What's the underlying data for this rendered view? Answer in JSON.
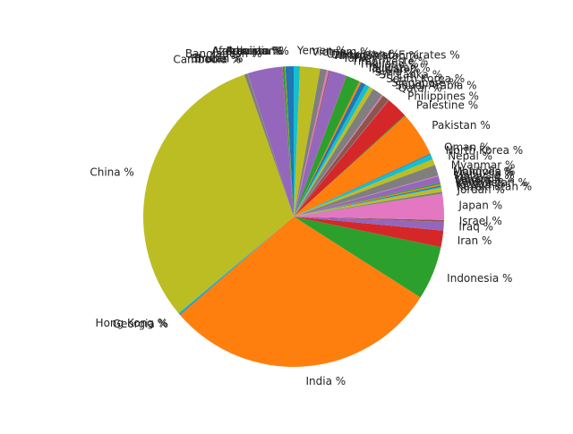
{
  "chart_data": {
    "type": "pie",
    "title": "",
    "start_angle_deg": 90,
    "direction": "counterclockwise",
    "slices": [
      {
        "label": "Afghanistan %",
        "value": 0.9,
        "color": "#1f77b4"
      },
      {
        "label": "Armenia %",
        "value": 0.07,
        "color": "#ff7f0e"
      },
      {
        "label": "Azerbaijan %",
        "value": 0.23,
        "color": "#2ca02c"
      },
      {
        "label": "Bahrain %",
        "value": 0.04,
        "color": "#d62728"
      },
      {
        "label": "Bangladesh %",
        "value": 3.8,
        "color": "#9467bd"
      },
      {
        "label": "Bhutan %",
        "value": 0.02,
        "color": "#8c564b"
      },
      {
        "label": "Brunei %",
        "value": 0.01,
        "color": "#e377c2"
      },
      {
        "label": "Cambodia %",
        "value": 0.37,
        "color": "#7f7f7f"
      },
      {
        "label": "China %",
        "value": 31.4,
        "color": "#bcbd22"
      },
      {
        "label": "Hong Kong %",
        "value": 0.17,
        "color": "#17becf"
      },
      {
        "label": "Georgia %",
        "value": 0.09,
        "color": "#1f77b4"
      },
      {
        "label": "India %",
        "value": 30.2,
        "color": "#ff7f0e"
      },
      {
        "label": "Indonesia %",
        "value": 5.9,
        "color": "#2ca02c"
      },
      {
        "label": "Iran %",
        "value": 1.8,
        "color": "#d62728"
      },
      {
        "label": "Iraq %",
        "value": 0.95,
        "color": "#9467bd"
      },
      {
        "label": "Israel %",
        "value": 0.2,
        "color": "#8c564b"
      },
      {
        "label": "Japan %",
        "value": 2.85,
        "color": "#e377c2"
      },
      {
        "label": "Jordan %",
        "value": 0.23,
        "color": "#7f7f7f"
      },
      {
        "label": "Kazakhstan %",
        "value": 0.42,
        "color": "#bcbd22"
      },
      {
        "label": "Kuwait %",
        "value": 0.1,
        "color": "#17becf"
      },
      {
        "label": "Kyrgyzstan %",
        "value": 0.15,
        "color": "#1f77b4"
      },
      {
        "label": "Laos %",
        "value": 0.16,
        "color": "#ff7f0e"
      },
      {
        "label": "Lebanon %",
        "value": 0.15,
        "color": "#2ca02c"
      },
      {
        "label": "Macao %",
        "value": 0.01,
        "color": "#d62728"
      },
      {
        "label": "Malaysia %",
        "value": 0.72,
        "color": "#9467bd"
      },
      {
        "label": "Maldives %",
        "value": 0.01,
        "color": "#8c564b"
      },
      {
        "label": "Mongolia %",
        "value": 0.07,
        "color": "#e377c2"
      },
      {
        "label": "Myanmar %",
        "value": 1.2,
        "color": "#7f7f7f"
      },
      {
        "label": "Nepal %",
        "value": 0.66,
        "color": "#bcbd22"
      },
      {
        "label": "North Korea %",
        "value": 0.56,
        "color": "#17becf"
      },
      {
        "label": "Oman %",
        "value": 0.1,
        "color": "#1f77b4"
      },
      {
        "label": "Pakistan %",
        "value": 4.9,
        "color": "#ff7f0e"
      },
      {
        "label": "Palestine %",
        "value": 0.1,
        "color": "#2ca02c"
      },
      {
        "label": "Philippines %",
        "value": 2.35,
        "color": "#d62728"
      },
      {
        "label": "Qatar %",
        "value": 0.06,
        "color": "#9467bd"
      },
      {
        "label": "Saudi Arabia %",
        "value": 0.75,
        "color": "#8c564b"
      },
      {
        "label": "Singapore %",
        "value": 0.13,
        "color": "#e377c2"
      },
      {
        "label": "South Korea %",
        "value": 1.15,
        "color": "#7f7f7f"
      },
      {
        "label": "Sri Lanka %",
        "value": 0.47,
        "color": "#bcbd22"
      },
      {
        "label": "Syria %",
        "value": 0.5,
        "color": "#17becf"
      },
      {
        "label": "Taiwan %",
        "value": 0.53,
        "color": "#1f77b4"
      },
      {
        "label": "Tajikistan %",
        "value": 0.21,
        "color": "#ff7f0e"
      },
      {
        "label": "Thailand %",
        "value": 1.5,
        "color": "#2ca02c"
      },
      {
        "label": "Timor-Leste %",
        "value": 0.03,
        "color": "#d62728"
      },
      {
        "label": "Turkey %",
        "value": 1.85,
        "color": "#9467bd"
      },
      {
        "label": "Turkmenistan %",
        "value": 0.13,
        "color": "#8c564b"
      },
      {
        "label": "United Arab Emirates %",
        "value": 0.21,
        "color": "#e377c2"
      },
      {
        "label": "Uzbekistan %",
        "value": 0.74,
        "color": "#7f7f7f"
      },
      {
        "label": "Vietnam %",
        "value": 2.2,
        "color": "#bcbd22"
      },
      {
        "label": "Yemen %",
        "value": 0.68,
        "color": "#17becf"
      }
    ]
  }
}
